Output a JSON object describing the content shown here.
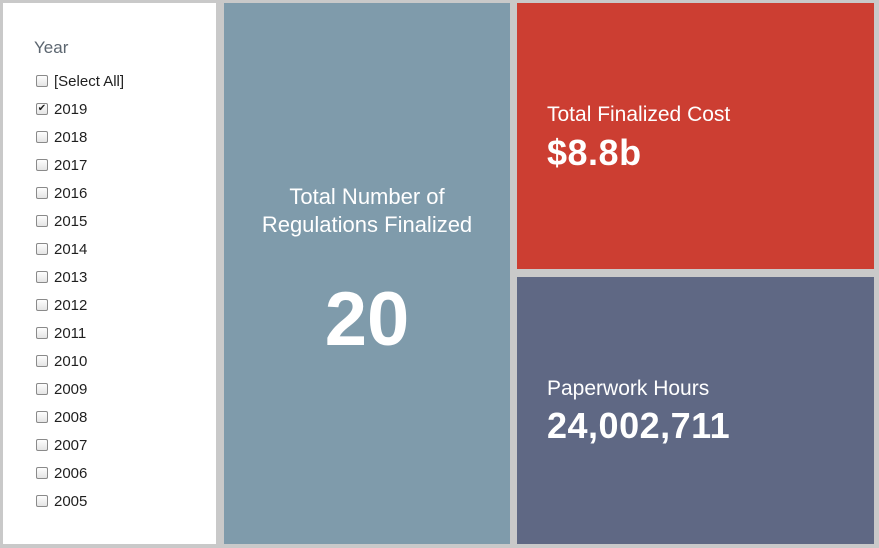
{
  "filter": {
    "title": "Year",
    "items": [
      {
        "label": "[Select All]",
        "checked": false
      },
      {
        "label": "2019",
        "checked": true
      },
      {
        "label": "2018",
        "checked": false
      },
      {
        "label": "2017",
        "checked": false
      },
      {
        "label": "2016",
        "checked": false
      },
      {
        "label": "2015",
        "checked": false
      },
      {
        "label": "2014",
        "checked": false
      },
      {
        "label": "2013",
        "checked": false
      },
      {
        "label": "2012",
        "checked": false
      },
      {
        "label": "2011",
        "checked": false
      },
      {
        "label": "2010",
        "checked": false
      },
      {
        "label": "2009",
        "checked": false
      },
      {
        "label": "2008",
        "checked": false
      },
      {
        "label": "2007",
        "checked": false
      },
      {
        "label": "2006",
        "checked": false
      },
      {
        "label": "2005",
        "checked": false
      }
    ]
  },
  "regulations": {
    "label": "Total Number of Regulations Finalized",
    "value": "20",
    "color": "#7f9bab"
  },
  "cost": {
    "label": "Total Finalized Cost",
    "value": "$8.8b",
    "color": "#cc3e32"
  },
  "hours": {
    "label": "Paperwork Hours",
    "value": "24,002,711",
    "color": "#5f6884"
  },
  "icons": {
    "checkbox_checked": "checkbox-checked-icon",
    "checkbox_unchecked": "checkbox-unchecked-icon"
  }
}
